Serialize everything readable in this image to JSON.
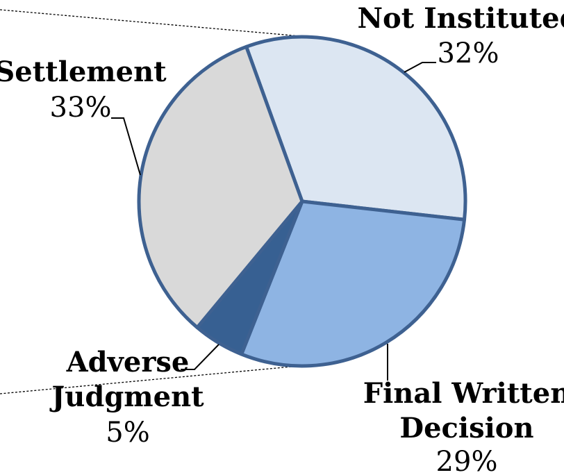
{
  "chart_data": {
    "type": "pie",
    "title": "",
    "legend": "none",
    "slices": [
      {
        "key": "not-instituted",
        "label_lines": [
          "Not Instituted"
        ],
        "pct_label": "32%",
        "value": 32,
        "color": "#dce6f2"
      },
      {
        "key": "final-written-decision",
        "label_lines": [
          "Final Written",
          "Decision"
        ],
        "pct_label": "29%",
        "value": 29,
        "color": "#8eb4e3"
      },
      {
        "key": "adverse-judgment",
        "label_lines": [
          "Adverse",
          "Judgment"
        ],
        "pct_label": "5%",
        "value": 5,
        "color": "#376092"
      },
      {
        "key": "settlement",
        "label_lines": [
          "Settlement"
        ],
        "pct_label": "33%",
        "value": 33,
        "color": "#d9d9d9"
      }
    ],
    "slice_border_color": "#3e6191"
  }
}
